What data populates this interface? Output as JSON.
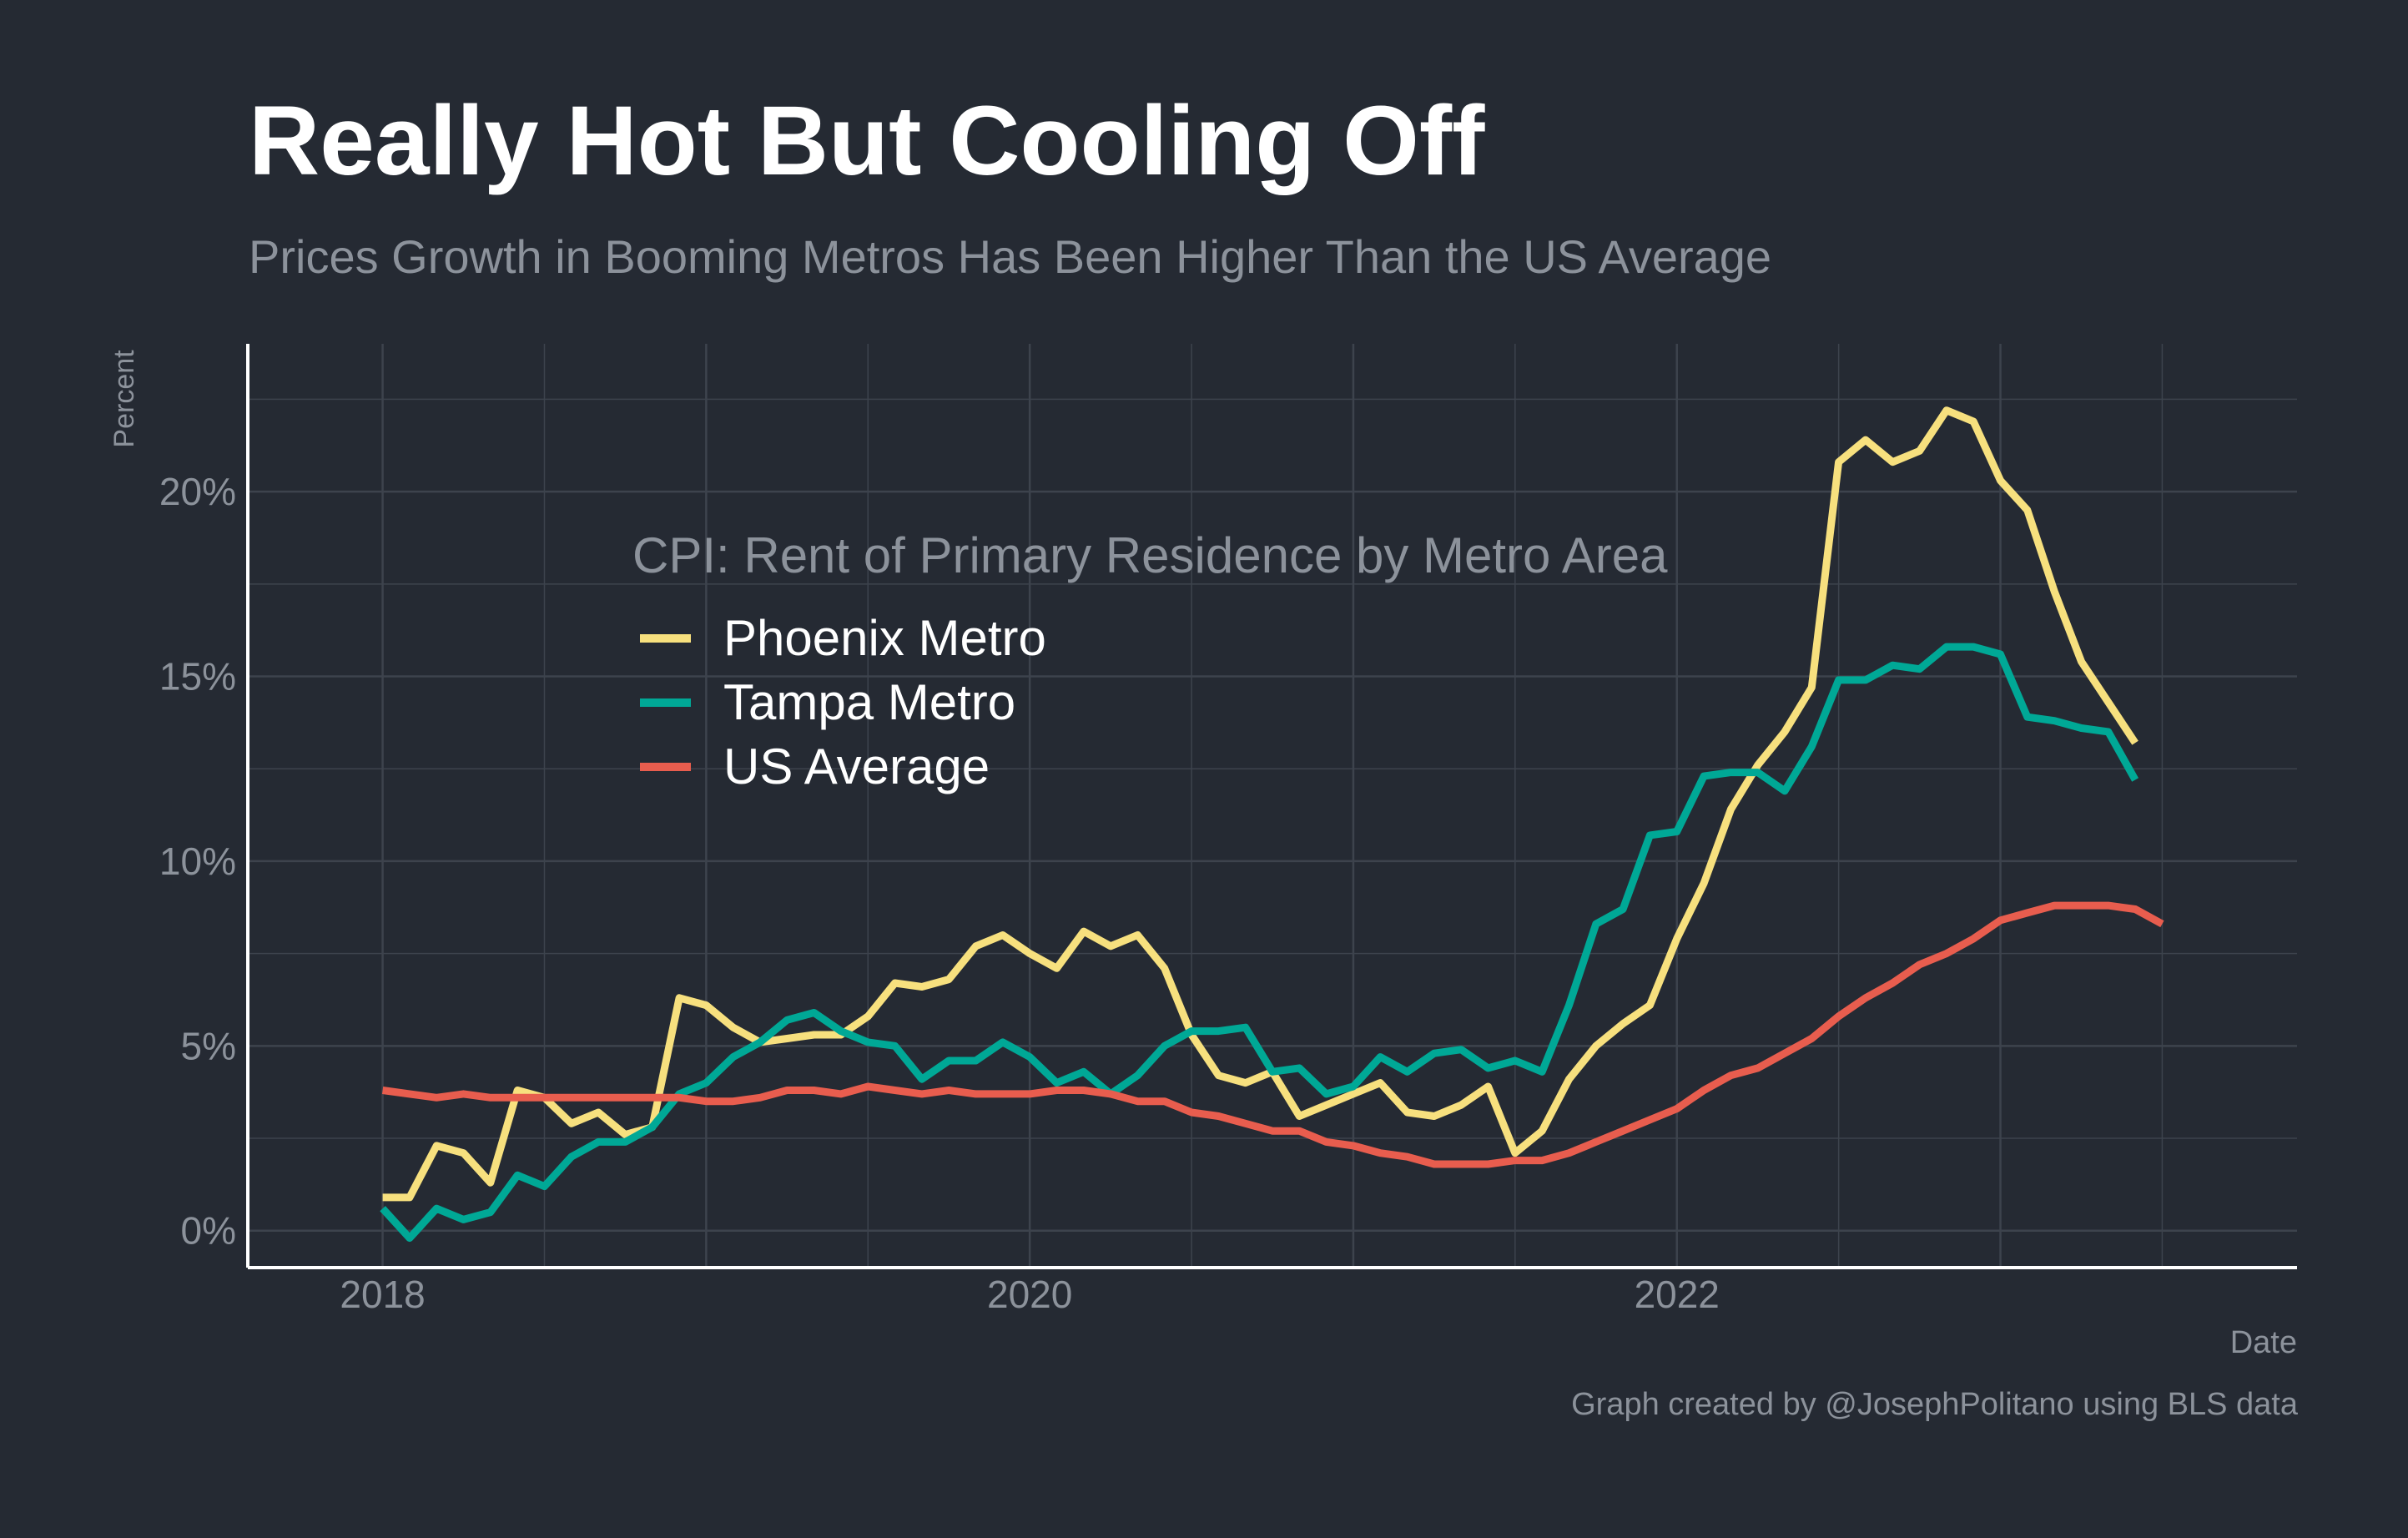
{
  "title": "Really Hot But Cooling Off",
  "subtitle": "Prices Growth in Booming Metros Has Been Higher Than the US Average",
  "caption": "Graph created by @JosephPolitano using BLS data",
  "colors": {
    "background": "#252a33",
    "grid": "#3d434d",
    "axis": "#ffffff",
    "muted_text": "#8c929b"
  },
  "chart_data": {
    "type": "line",
    "title": "",
    "xlabel": "Date",
    "ylabel": "Percent",
    "xlim": [
      "2017-08",
      "2023-12"
    ],
    "ylim": [
      -1,
      24
    ],
    "x_ticks": [
      {
        "value": "2018-01",
        "label": "2018"
      },
      {
        "value": "2020-01",
        "label": "2020"
      },
      {
        "value": "2022-01",
        "label": "2022"
      }
    ],
    "y_ticks": [
      {
        "value": 0,
        "label": "0%"
      },
      {
        "value": 5,
        "label": "5%"
      },
      {
        "value": 10,
        "label": "10%"
      },
      {
        "value": 15,
        "label": "15%"
      },
      {
        "value": 20,
        "label": "20%"
      }
    ],
    "grid": true,
    "legend": {
      "title": "CPI: Rent of Primary Residence by Metro Area",
      "placement": "upper-left inside plot"
    },
    "x": [
      "2018-01",
      "2018-02",
      "2018-03",
      "2018-04",
      "2018-05",
      "2018-06",
      "2018-07",
      "2018-08",
      "2018-09",
      "2018-10",
      "2018-11",
      "2018-12",
      "2019-01",
      "2019-02",
      "2019-03",
      "2019-04",
      "2019-05",
      "2019-06",
      "2019-07",
      "2019-08",
      "2019-09",
      "2019-10",
      "2019-11",
      "2019-12",
      "2020-01",
      "2020-02",
      "2020-03",
      "2020-04",
      "2020-05",
      "2020-06",
      "2020-07",
      "2020-08",
      "2020-09",
      "2020-10",
      "2020-11",
      "2020-12",
      "2021-01",
      "2021-02",
      "2021-03",
      "2021-04",
      "2021-05",
      "2021-06",
      "2021-07",
      "2021-08",
      "2021-09",
      "2021-10",
      "2021-11",
      "2021-12",
      "2022-01",
      "2022-02",
      "2022-03",
      "2022-04",
      "2022-05",
      "2022-06",
      "2022-07",
      "2022-08",
      "2022-09",
      "2022-10",
      "2022-11",
      "2022-12",
      "2023-01",
      "2023-02",
      "2023-03",
      "2023-04",
      "2023-05",
      "2023-06",
      "2023-07"
    ],
    "series": [
      {
        "name": "Phoenix Metro",
        "color": "#f7e07e",
        "values": [
          0.9,
          0.9,
          2.3,
          2.1,
          1.3,
          3.8,
          3.6,
          2.9,
          3.2,
          2.6,
          2.8,
          6.3,
          6.1,
          5.5,
          5.1,
          5.2,
          5.3,
          5.3,
          5.8,
          6.7,
          6.6,
          6.8,
          7.7,
          8.0,
          7.5,
          7.1,
          8.1,
          7.7,
          8.0,
          7.1,
          5.3,
          4.2,
          4.0,
          4.3,
          3.1,
          3.4,
          3.7,
          4.0,
          3.2,
          3.1,
          3.4,
          3.9,
          2.1,
          2.7,
          4.1,
          5.0,
          5.6,
          6.1,
          7.9,
          9.4,
          11.4,
          12.6,
          13.5,
          14.7,
          20.8,
          21.4,
          20.8,
          21.1,
          22.2,
          21.9,
          20.3,
          19.5,
          17.3,
          15.4,
          14.3,
          13.2,
          null
        ]
      },
      {
        "name": "Tampa Metro",
        "color": "#00a896",
        "values": [
          0.6,
          -0.2,
          0.6,
          0.3,
          0.5,
          1.5,
          1.2,
          2.0,
          2.4,
          2.4,
          2.8,
          3.7,
          4.0,
          4.7,
          5.1,
          5.7,
          5.9,
          5.4,
          5.1,
          5.0,
          4.1,
          4.6,
          4.6,
          5.1,
          4.7,
          4.0,
          4.3,
          3.7,
          4.2,
          5.0,
          5.4,
          5.4,
          5.5,
          4.3,
          4.4,
          3.7,
          3.9,
          4.7,
          4.3,
          4.8,
          4.9,
          4.4,
          4.6,
          4.3,
          6.1,
          8.3,
          8.7,
          10.7,
          10.8,
          12.3,
          12.4,
          12.4,
          11.9,
          13.1,
          14.9,
          14.9,
          15.3,
          15.2,
          15.8,
          15.8,
          15.6,
          13.9,
          13.8,
          13.6,
          13.5,
          12.2,
          null
        ]
      },
      {
        "name": "US Average",
        "color": "#e85d4e",
        "values": [
          3.8,
          3.7,
          3.6,
          3.7,
          3.6,
          3.6,
          3.6,
          3.6,
          3.6,
          3.6,
          3.6,
          3.6,
          3.5,
          3.5,
          3.6,
          3.8,
          3.8,
          3.7,
          3.9,
          3.8,
          3.7,
          3.8,
          3.7,
          3.7,
          3.7,
          3.8,
          3.8,
          3.7,
          3.5,
          3.5,
          3.2,
          3.1,
          2.9,
          2.7,
          2.7,
          2.4,
          2.3,
          2.1,
          2.0,
          1.8,
          1.8,
          1.8,
          1.9,
          1.9,
          2.1,
          2.4,
          2.7,
          3.0,
          3.3,
          3.8,
          4.2,
          4.4,
          4.8,
          5.2,
          5.8,
          6.3,
          6.7,
          7.2,
          7.5,
          7.9,
          8.4,
          8.6,
          8.8,
          8.8,
          8.8,
          8.7,
          8.3
        ]
      }
    ]
  }
}
